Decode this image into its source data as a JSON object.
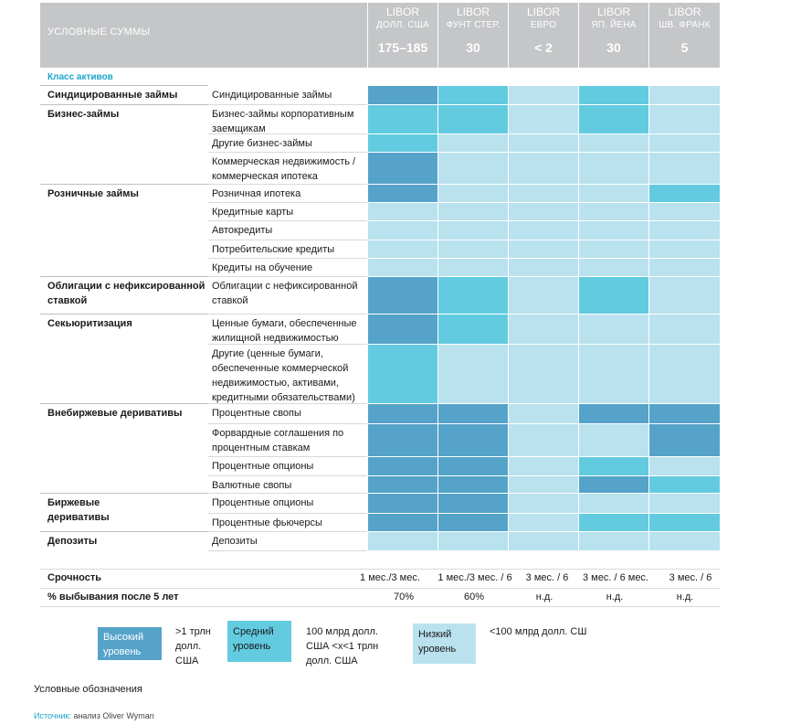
{
  "colors": {
    "high": "#55a3c9",
    "medium": "#62cbe0",
    "low": "#b9e2ee",
    "header": "#c4c6c8",
    "accent": "#1da5cc"
  },
  "header": {
    "left_label": "УСЛОВНЫЕ СУММЫ",
    "columns": [
      {
        "l1": "LIBOR",
        "l2": "ДОЛЛ. США",
        "l3": "175–185"
      },
      {
        "l1": "LIBOR",
        "l2": "ФУНТ СТЕР.",
        "l3": "30"
      },
      {
        "l1": "LIBOR",
        "l2": "ЕВРО",
        "l3": "< 2"
      },
      {
        "l1": "LIBOR",
        "l2": "ЯП. ЙЕНА",
        "l3": "30"
      },
      {
        "l1": "LIBOR",
        "l2": "ШВ. ФРАНК",
        "l3": "5"
      }
    ]
  },
  "section_label": "Класс активов",
  "chart_data": {
    "type": "heatmap",
    "levels": [
      "Высокий уровень",
      "Средний уровень",
      "Низкий уровень"
    ],
    "categories": [
      {
        "label": "Синдицированные займы",
        "rows": [
          0
        ]
      },
      {
        "label": "Бизнес-займы",
        "rows": [
          1,
          2,
          3
        ]
      },
      {
        "label": "Розничные займы",
        "rows": [
          4,
          5,
          6,
          7,
          8
        ]
      },
      {
        "label": "Облигации с нефиксированной ставкой",
        "rows": [
          9
        ]
      },
      {
        "label": "Секьюритизация",
        "rows": [
          10,
          11
        ]
      },
      {
        "label": "Внебиржевые деривативы",
        "rows": [
          12,
          13,
          14,
          15
        ]
      },
      {
        "label": "Биржевые деривативы",
        "rows": [
          16,
          17
        ]
      },
      {
        "label": "Депозиты",
        "rows": [
          18
        ]
      }
    ],
    "rows": [
      {
        "label": "Синдицированные займы",
        "cells": [
          "high",
          "medium",
          "low",
          "medium",
          "low"
        ]
      },
      {
        "label": "Бизнес-займы корпоративным заемщикам",
        "cells": [
          "medium",
          "medium",
          "low",
          "medium",
          "low"
        ]
      },
      {
        "label": "Другие бизнес-займы",
        "cells": [
          "medium",
          "low",
          "low",
          "low",
          "low"
        ]
      },
      {
        "label": "Коммерческая недвижимость / коммерческая ипотека",
        "cells": [
          "high",
          "low",
          "low",
          "low",
          "low"
        ]
      },
      {
        "label": "Розничная ипотека",
        "cells": [
          "high",
          "low",
          "low",
          "low",
          "medium"
        ]
      },
      {
        "label": "Кредитные карты",
        "cells": [
          "low",
          "low",
          "low",
          "low",
          "low"
        ]
      },
      {
        "label": "Автокредиты",
        "cells": [
          "low",
          "low",
          "low",
          "low",
          "low"
        ]
      },
      {
        "label": "Потребительские кредиты",
        "cells": [
          "low",
          "low",
          "low",
          "low",
          "low"
        ]
      },
      {
        "label": "Кредиты на обучение",
        "cells": [
          "low",
          "low",
          "low",
          "low",
          "low"
        ]
      },
      {
        "label": "Облигации с нефиксированной ставкой",
        "cells": [
          "high",
          "medium",
          "low",
          "medium",
          "low"
        ]
      },
      {
        "label": "Ценные бумаги, обеспеченные жилищной недвижимостью",
        "cells": [
          "high",
          "medium",
          "low",
          "low",
          "low"
        ]
      },
      {
        "label": "Другие (ценные бумаги, обеспеченные коммерческой недвижимостью, активами, кредитными обязательствами)",
        "cells": [
          "medium",
          "low",
          "low",
          "low",
          "low"
        ]
      },
      {
        "label": "Процентные свопы",
        "cells": [
          "high",
          "high",
          "low",
          "high",
          "high"
        ]
      },
      {
        "label": "Форвардные соглашения по процентным ставкам",
        "cells": [
          "high",
          "high",
          "low",
          "low",
          "high"
        ]
      },
      {
        "label": "Процентные опционы",
        "cells": [
          "high",
          "high",
          "low",
          "medium",
          "low"
        ]
      },
      {
        "label": "Валютные свопы",
        "cells": [
          "high",
          "high",
          "low",
          "high",
          "medium"
        ]
      },
      {
        "label": "Процентные опционы",
        "cells": [
          "high",
          "high",
          "low",
          "low",
          "low"
        ]
      },
      {
        "label": "Процентные фьючерсы",
        "cells": [
          "high",
          "high",
          "low",
          "medium",
          "medium"
        ]
      },
      {
        "label": "Депозиты",
        "cells": [
          "low",
          "low",
          "low",
          "low",
          "low"
        ]
      }
    ]
  },
  "category_display": [
    "Синдицированные займы",
    "Бизнес-займы",
    "Розничные займы",
    "Облигации с нефиксированной ставкой",
    "Секьюритизация",
    "Внебиржевые деривативы",
    "Биржевые деривативы",
    "Депозиты"
  ],
  "row_display": [
    "Синдицированные займы",
    "Бизнес-займы корпоративным заемщикам",
    "Другие бизнес-займы",
    "Коммерческая недвижимость / коммерческая ипотека",
    "Розничная ипотека",
    "Кредитные карты",
    "Автокредиты",
    "Потребительские кредиты",
    "Кредиты на обучение",
    "Облигации с нефиксированной ставкой",
    "Ценные бумаги, обеспеченные жилищной недвижимостью",
    "Другие (ценные бумаги, обеспеченные коммерческой недвижимостью, активами, кредитными обязательствами)",
    "Процентные свопы",
    "Форвардные соглашения по процентным ставкам",
    "Процентные опционы",
    "Валютные свопы",
    "Процентные опционы",
    "Процентные фьючерсы",
    "Депозиты"
  ],
  "footer": {
    "maturity_label": "Срочность",
    "maturity": [
      "1 мес./3 мес.",
      "1 мес./3 мес. / 6",
      "3 мес. / 6",
      "3 мес. / 6 мес.",
      "3 мес. / 6"
    ],
    "attrition_label": "% выбывания после 5 лет",
    "attrition": [
      "70%",
      "60%",
      "н.д.",
      "н.д.",
      "н.д."
    ]
  },
  "legend": {
    "high_label": "Высокий уровень",
    "high_desc": ">1 трлн долл. США",
    "medium_label": "Средний уровень",
    "medium_desc": "100 млрд долл. США <x<1 трлн долл. США",
    "low_label": "Низкий уровень",
    "low_desc": "<100 млрд долл. СШ",
    "title": "Условные обозначения"
  },
  "source": {
    "label": "Источник:",
    "text": "анализ Oliver Wyman"
  }
}
